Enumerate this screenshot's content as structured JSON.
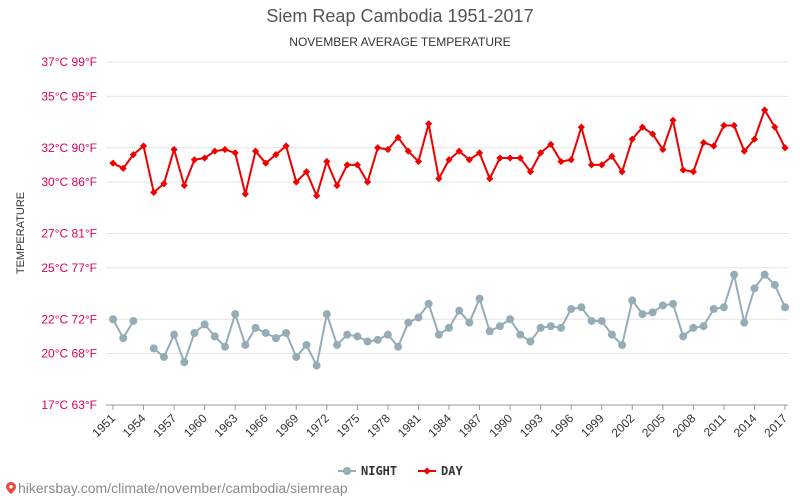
{
  "chart_data": {
    "type": "line",
    "title": "Siem Reap Cambodia 1951-2017",
    "subtitle": "NOVEMBER AVERAGE TEMPERATURE",
    "ylabel": "TEMPERATURE",
    "xlabel": "",
    "ylim": [
      17,
      37
    ],
    "yticks": [
      {
        "value": 17,
        "label": "17°C 63°F"
      },
      {
        "value": 20,
        "label": "20°C 68°F"
      },
      {
        "value": 22,
        "label": "22°C 72°F"
      },
      {
        "value": 25,
        "label": "25°C 77°F"
      },
      {
        "value": 27,
        "label": "27°C 81°F"
      },
      {
        "value": 30,
        "label": "30°C 86°F"
      },
      {
        "value": 32,
        "label": "32°C 90°F"
      },
      {
        "value": 35,
        "label": "35°C 95°F"
      },
      {
        "value": 37,
        "label": "37°C 99°F"
      }
    ],
    "xticks": [
      "1951",
      "1954",
      "1957",
      "1960",
      "1963",
      "1966",
      "1969",
      "1972",
      "1975",
      "1978",
      "1981",
      "1984",
      "1987",
      "1990",
      "1993",
      "1996",
      "1999",
      "2002",
      "2005",
      "2008",
      "2011",
      "2014",
      "2017"
    ],
    "x": [
      1951,
      1952,
      1953,
      1954,
      1955,
      1956,
      1957,
      1958,
      1959,
      1960,
      1961,
      1962,
      1963,
      1964,
      1965,
      1966,
      1967,
      1968,
      1969,
      1970,
      1971,
      1972,
      1973,
      1974,
      1975,
      1976,
      1977,
      1978,
      1979,
      1980,
      1981,
      1982,
      1983,
      1984,
      1985,
      1986,
      1987,
      1988,
      1989,
      1990,
      1991,
      1992,
      1993,
      1994,
      1995,
      1996,
      1997,
      1998,
      1999,
      2000,
      2001,
      2002,
      2003,
      2004,
      2005,
      2006,
      2007,
      2008,
      2009,
      2010,
      2011,
      2012,
      2013,
      2014,
      2015,
      2016,
      2017
    ],
    "series": [
      {
        "name": "DAY",
        "color": "#ee0000",
        "values": [
          31.1,
          30.8,
          31.6,
          32.1,
          29.4,
          29.9,
          31.9,
          29.8,
          31.3,
          31.4,
          31.8,
          31.9,
          31.7,
          29.3,
          31.8,
          31.1,
          31.6,
          32.1,
          30.0,
          30.6,
          29.2,
          31.2,
          29.8,
          31.0,
          31.0,
          30.0,
          32.0,
          31.9,
          32.6,
          31.8,
          31.2,
          33.4,
          30.2,
          31.3,
          31.8,
          31.3,
          31.7,
          30.2,
          31.4,
          31.4,
          31.4,
          30.6,
          31.7,
          32.2,
          31.2,
          31.3,
          33.2,
          31.0,
          31.0,
          31.5,
          30.6,
          32.5,
          33.2,
          32.8,
          31.9,
          33.6,
          30.7,
          30.6,
          32.3,
          32.1,
          33.3,
          33.3,
          31.8,
          32.5,
          34.2,
          33.2,
          32.0
        ]
      },
      {
        "name": "NIGHT",
        "color": "#95adb6",
        "values": [
          22.0,
          20.9,
          21.9,
          null,
          20.3,
          19.8,
          21.1,
          19.5,
          21.2,
          21.7,
          21.0,
          20.4,
          22.3,
          20.5,
          21.5,
          21.2,
          20.9,
          21.2,
          19.8,
          20.5,
          19.3,
          22.3,
          20.5,
          21.1,
          21.0,
          20.7,
          20.8,
          21.1,
          20.4,
          21.8,
          22.1,
          22.9,
          21.1,
          21.5,
          22.5,
          21.8,
          23.2,
          21.3,
          21.6,
          22.0,
          21.1,
          20.7,
          21.5,
          21.6,
          21.5,
          22.6,
          22.7,
          21.9,
          21.9,
          21.1,
          20.5,
          23.1,
          22.3,
          22.4,
          22.8,
          22.9,
          21.0,
          21.5,
          21.6,
          22.6,
          22.7,
          24.6,
          21.8,
          23.8,
          24.6,
          24.0,
          22.7
        ]
      }
    ],
    "legend_position": "bottom-center",
    "grid": true
  },
  "footer": {
    "site_text": "hikersbay.com/climate/november/cambodia/siemreap"
  }
}
